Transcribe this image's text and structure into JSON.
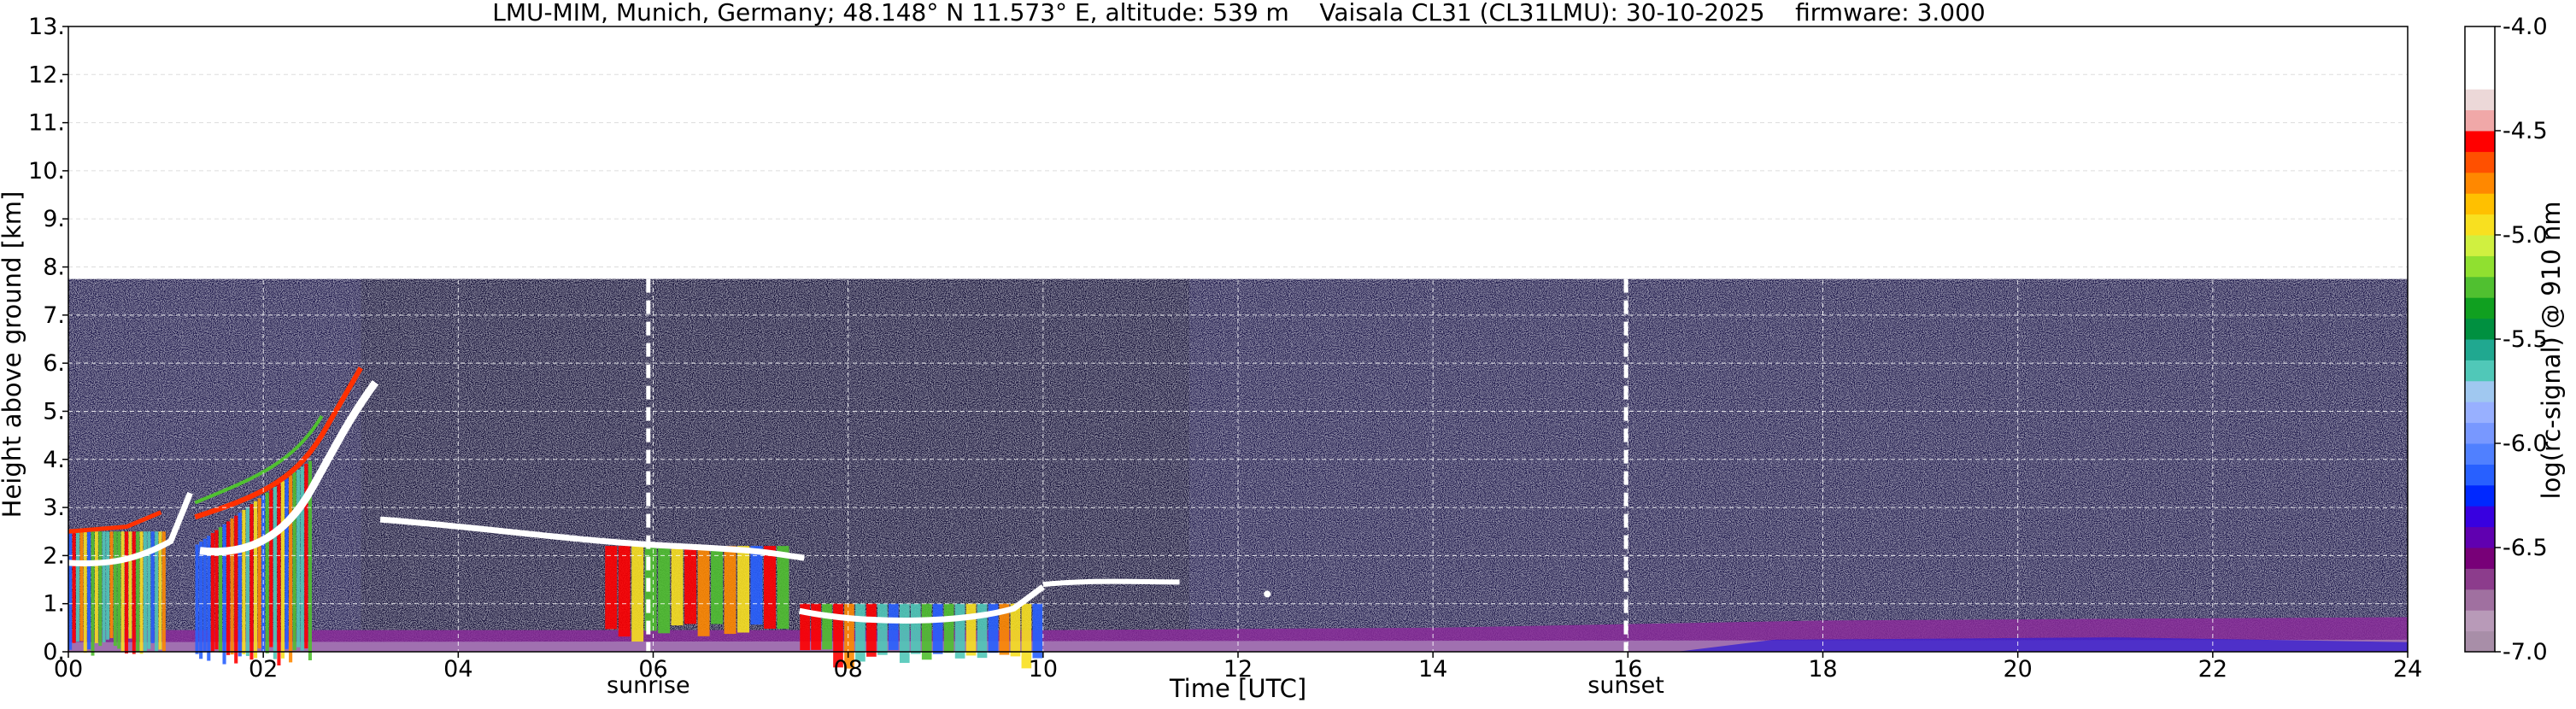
{
  "chart_data": {
    "type": "heatmap",
    "title": "LMU-MIM, Munich, Germany; 48.148° N 11.573° E, altitude: 539 m    Vaisala CL31 (CL31LMU): 30-10-2025    firmware: 3.000",
    "xlabel": "Time [UTC]",
    "ylabel": "Height above ground [km]",
    "xlim": [
      0,
      24
    ],
    "ylim": [
      0,
      13
    ],
    "x_ticks": [
      "00",
      "02",
      "04",
      "06",
      "08",
      "10",
      "12",
      "14",
      "16",
      "18",
      "20",
      "22",
      "24"
    ],
    "y_ticks": [
      "0.",
      "1.",
      "2.",
      "3.",
      "4.",
      "5.",
      "6.",
      "7.",
      "8.",
      "9.",
      "10.",
      "11.",
      "12.",
      "13."
    ],
    "grid": true,
    "data_top_km": 7.75,
    "events": [
      {
        "label": "sunrise",
        "time_h": 5.95
      },
      {
        "label": "sunset",
        "time_h": 15.98
      }
    ],
    "colorbar": {
      "label": "log(rc-signal) @ 910 nm",
      "range": [
        -7.0,
        -4.0
      ],
      "ticks": [
        "-7.0",
        "-6.5",
        "-6.0",
        "-5.5",
        "-5.0",
        "-4.5",
        "-4.0"
      ],
      "colors": [
        "#a88ea8",
        "#b89ab8",
        "#a070a0",
        "#8c3c8c",
        "#780078",
        "#6000b0",
        "#3800e0",
        "#0028ff",
        "#2860ff",
        "#5080ff",
        "#7898ff",
        "#98b0ff",
        "#a0c8f0",
        "#50c8b8",
        "#20a890",
        "#009040",
        "#10a020",
        "#50c030",
        "#90e030",
        "#d0f040",
        "#f8e020",
        "#ffc000",
        "#ff8800",
        "#ff5000",
        "#ff0000",
        "#f0a8a8",
        "#ecd8d8",
        "#ffffff",
        "#ffffff",
        "#ffffff"
      ]
    },
    "features": [
      {
        "name": "cloud layer",
        "t_start": 0.0,
        "t_end": 1.0,
        "height_km": 1.85,
        "note": "white core with colored fall streaks"
      },
      {
        "name": "rising layer",
        "t_start": 1.3,
        "t_end": 3.2,
        "height_start_km": 2.0,
        "height_end_km": 5.7
      },
      {
        "name": "cloud base layer",
        "t_start": 3.2,
        "t_end": 7.5,
        "height_start_km": 2.7,
        "height_end_km": 1.9
      },
      {
        "name": "low layer",
        "t_start": 7.5,
        "t_end": 10.0,
        "height_start_km": 0.8,
        "height_end_km": 1.3
      },
      {
        "name": "thin layer",
        "t_start": 10.0,
        "t_end": 11.4,
        "height_km": 1.45
      },
      {
        "name": "boundary layer",
        "t_start": 0.0,
        "t_end": 24.0,
        "height_km": 0.5
      }
    ]
  }
}
